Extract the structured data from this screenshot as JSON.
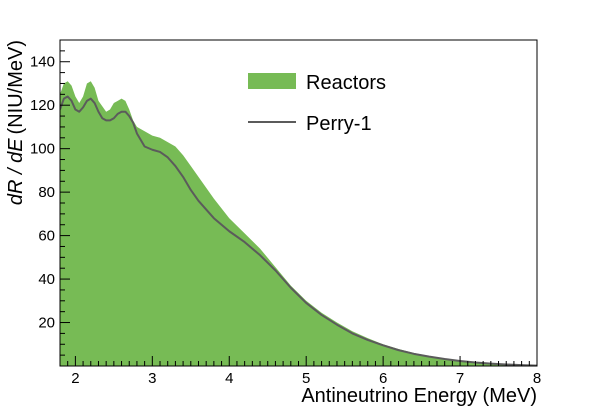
{
  "chart_data": {
    "type": "area",
    "xlabel": "Antineutrino Energy (MeV)",
    "ylabel_italic": "dR / dE",
    "ylabel_units": "(NIU/MeV)",
    "xlim": [
      1.8,
      8.0
    ],
    "ylim": [
      0,
      150
    ],
    "x_ticks": [
      "2",
      "3",
      "4",
      "5",
      "6",
      "7",
      "8"
    ],
    "y_ticks": [
      "20",
      "40",
      "60",
      "80",
      "100",
      "120",
      "140"
    ],
    "grid": false,
    "legend_position": "top-right",
    "series": [
      {
        "name": "Reactors",
        "style": "filled-area",
        "color": "#77bb55",
        "x": [
          1.8,
          1.85,
          1.9,
          1.95,
          2.0,
          2.05,
          2.1,
          2.15,
          2.2,
          2.25,
          2.3,
          2.4,
          2.45,
          2.5,
          2.55,
          2.6,
          2.65,
          2.7,
          2.75,
          2.8,
          2.9,
          3.0,
          3.1,
          3.2,
          3.3,
          3.4,
          3.5,
          3.6,
          3.8,
          4.0,
          4.2,
          4.4,
          4.6,
          4.8,
          5.0,
          5.2,
          5.4,
          5.6,
          5.8,
          6.0,
          6.2,
          6.4,
          6.6,
          6.8,
          7.0,
          7.2,
          7.4,
          7.6,
          7.8,
          8.0
        ],
        "values": [
          125,
          130,
          131,
          129,
          124,
          121,
          124,
          130,
          131,
          128,
          122,
          117,
          118,
          121,
          122,
          123,
          122,
          118,
          113,
          110,
          108,
          106,
          105,
          103,
          101,
          97,
          92,
          87,
          77,
          68,
          61,
          54,
          45.5,
          37,
          30,
          24.5,
          20,
          16,
          12.8,
          10,
          7.8,
          6,
          4.6,
          3.5,
          2.6,
          1.9,
          1.3,
          0.8,
          0.5,
          0.2
        ]
      },
      {
        "name": "Perry-1",
        "style": "line",
        "color": "#5b5b5b",
        "x": [
          1.8,
          1.85,
          1.9,
          1.95,
          2.0,
          2.05,
          2.1,
          2.15,
          2.2,
          2.25,
          2.3,
          2.35,
          2.4,
          2.45,
          2.5,
          2.55,
          2.6,
          2.65,
          2.7,
          2.75,
          2.8,
          2.9,
          3.0,
          3.1,
          3.2,
          3.3,
          3.4,
          3.5,
          3.6,
          3.8,
          4.0,
          4.2,
          4.4,
          4.6,
          4.8,
          5.0,
          5.2,
          5.4,
          5.6,
          5.8,
          6.0,
          6.2,
          6.4,
          6.6,
          6.8,
          7.0,
          7.2,
          7.4,
          7.6,
          7.8,
          8.0
        ],
        "values": [
          118,
          123,
          124,
          122,
          118,
          117,
          119,
          122,
          123,
          121,
          117,
          114,
          113,
          113,
          114,
          116,
          117,
          117,
          115,
          112,
          107,
          101,
          99.5,
          98.5,
          96,
          92,
          87,
          81,
          76,
          68,
          62,
          57,
          51,
          44,
          36,
          29,
          23.5,
          19,
          15,
          12,
          9.5,
          7.3,
          5.6,
          4.3,
          3.2,
          2.3,
          1.6,
          1.1,
          0.7,
          0.4,
          0.2
        ]
      }
    ]
  }
}
